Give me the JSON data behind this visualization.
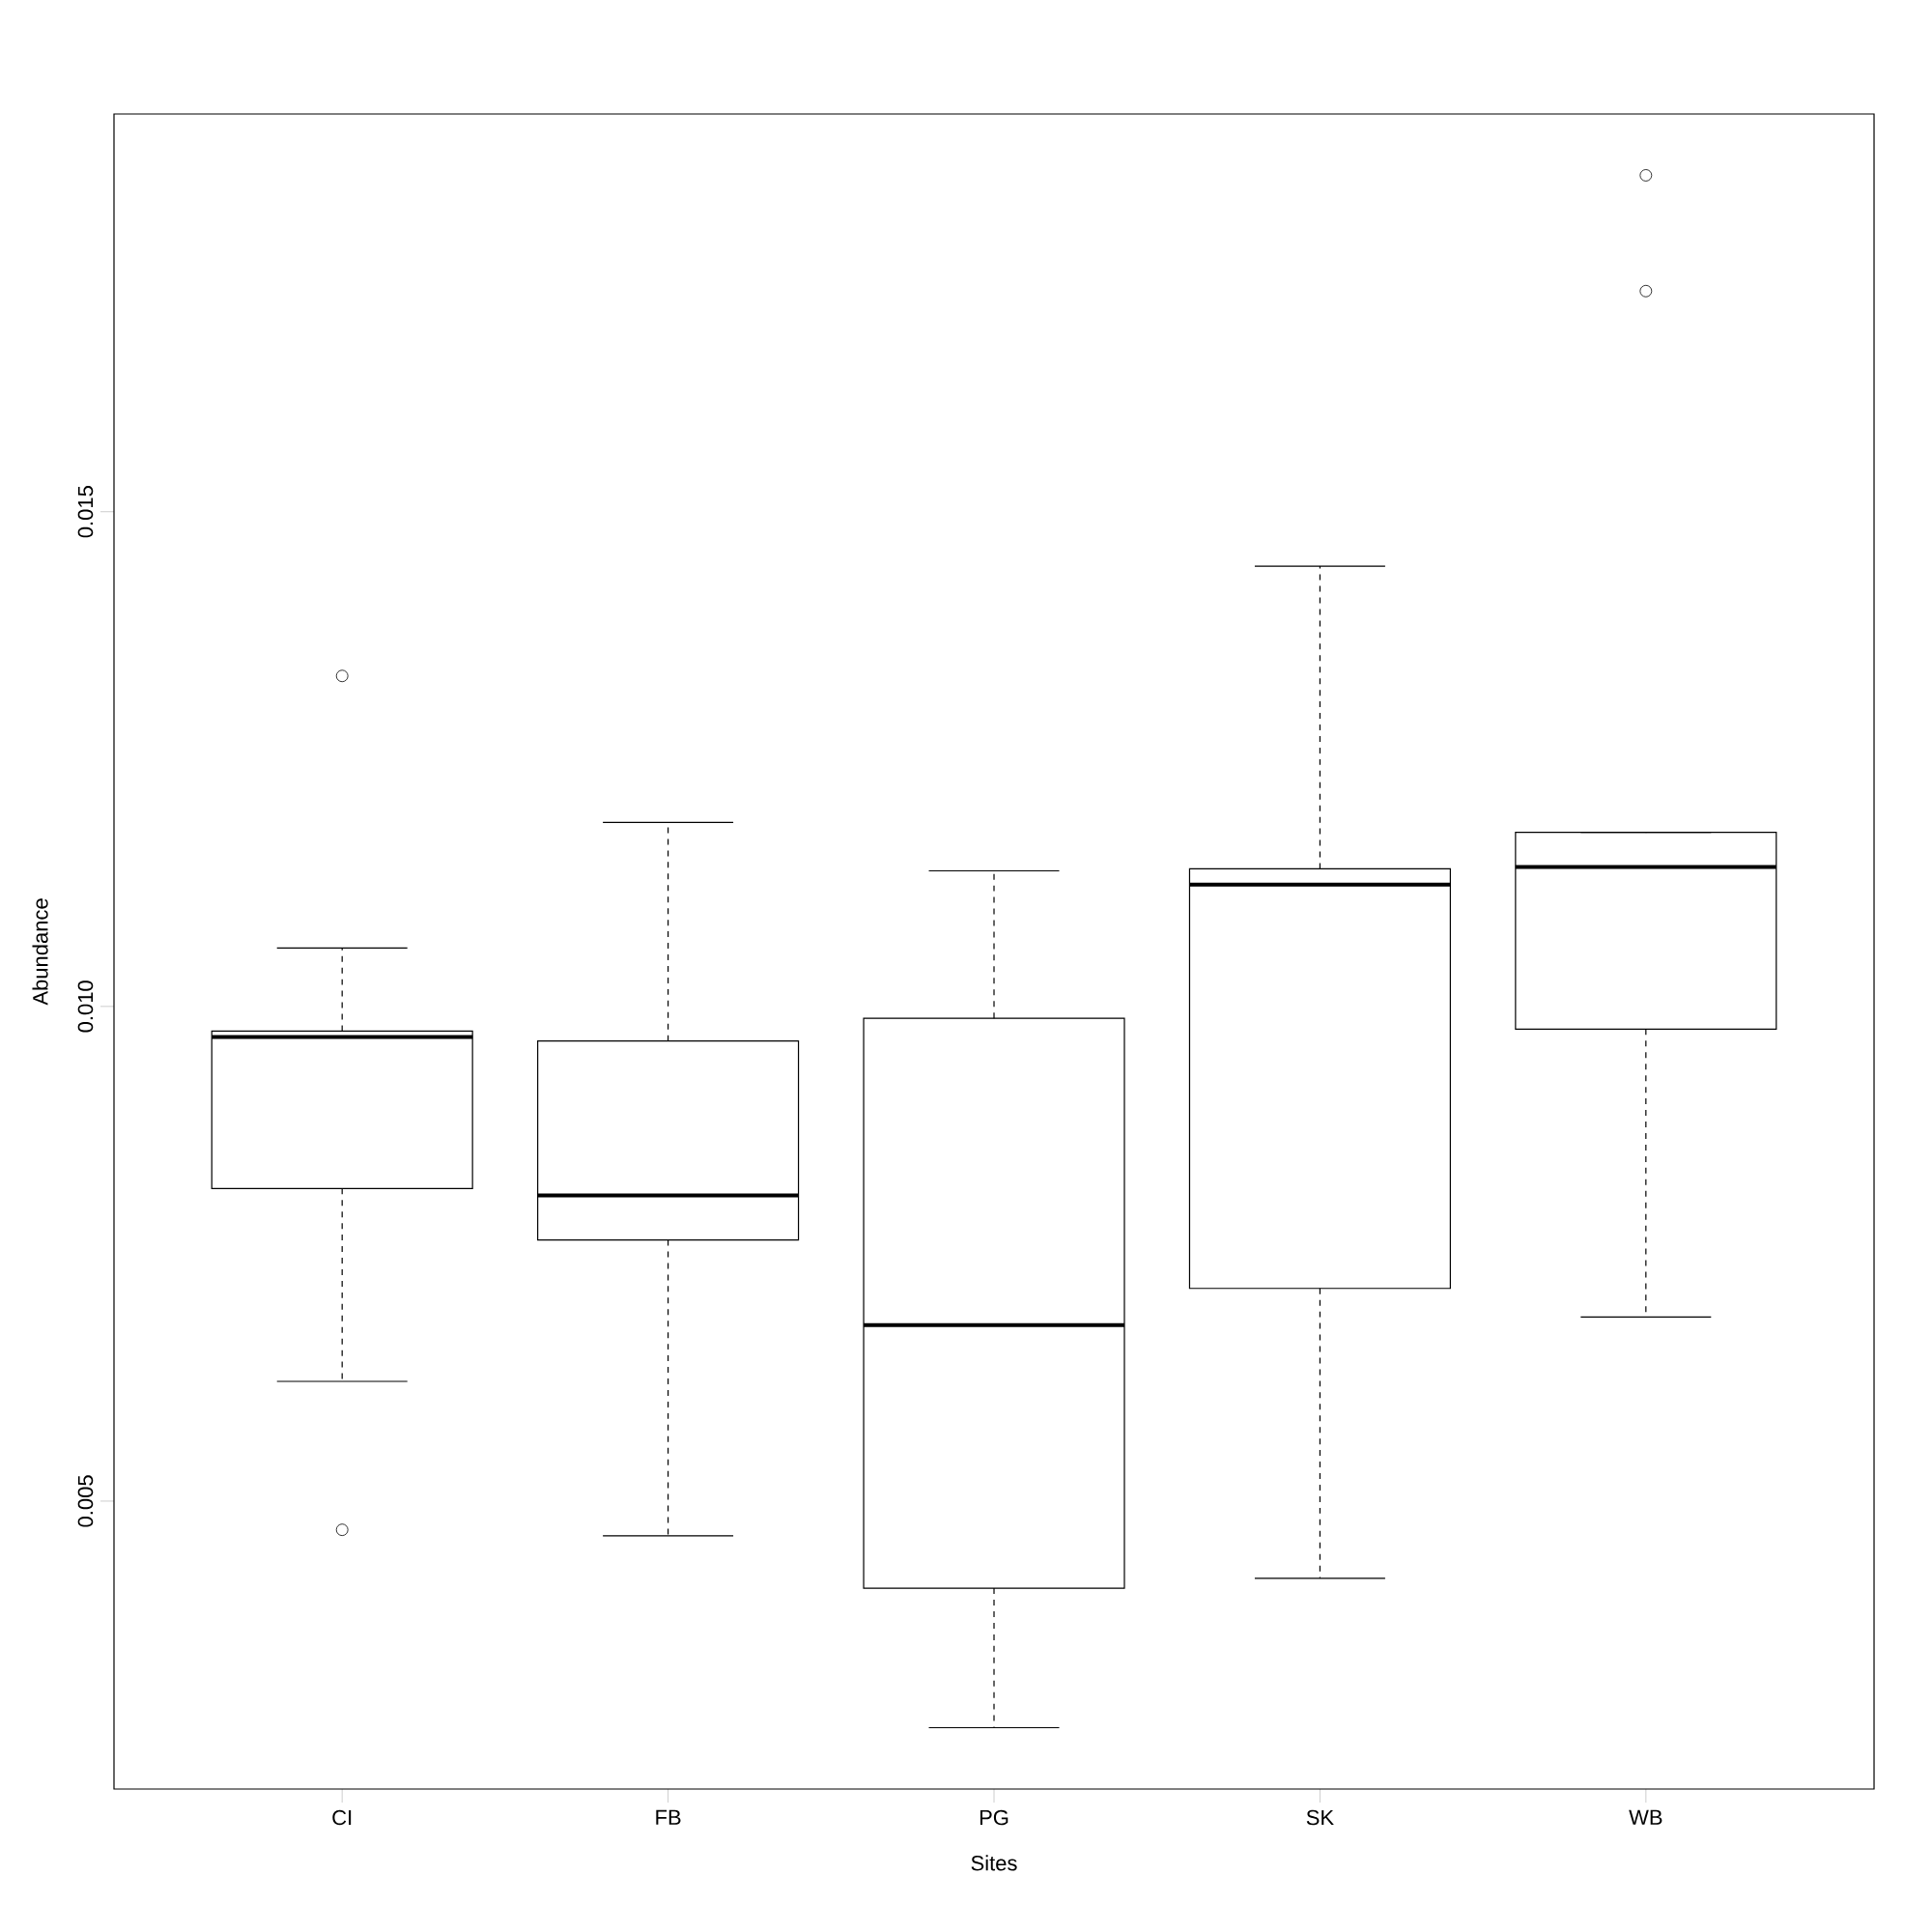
{
  "chart_data": {
    "type": "box",
    "xlabel": "Sites",
    "ylabel": "Abundance",
    "categories": [
      "CI",
      "FB",
      "PG",
      "SK",
      "WB"
    ],
    "boxes": [
      {
        "low": 0.00621,
        "q1": 0.00816,
        "median": 0.00969,
        "q3": 0.00975,
        "high": 0.01059,
        "outliers": [
          0.01334,
          0.00471
        ]
      },
      {
        "low": 0.00465,
        "q1": 0.00764,
        "median": 0.00809,
        "q3": 0.00965,
        "high": 0.01186
      },
      {
        "low": 0.00271,
        "q1": 0.00412,
        "median": 0.00678,
        "q3": 0.00988,
        "high": 0.01137
      },
      {
        "low": 0.00422,
        "q1": 0.00715,
        "median": 0.01123,
        "q3": 0.01139,
        "high": 0.01445
      },
      {
        "low": 0.00686,
        "q1": 0.00977,
        "median": 0.01141,
        "q3": 0.01176,
        "high": 0.01176,
        "outliers": [
          0.0184,
          0.01723
        ]
      }
    ],
    "ylim": [
      0.00209,
      0.01902
    ],
    "yticks": [
      {
        "value": 0.005,
        "label": "0.005"
      },
      {
        "value": 0.01,
        "label": "0.010"
      },
      {
        "value": 0.015,
        "label": "0.015"
      }
    ],
    "grid": false
  }
}
